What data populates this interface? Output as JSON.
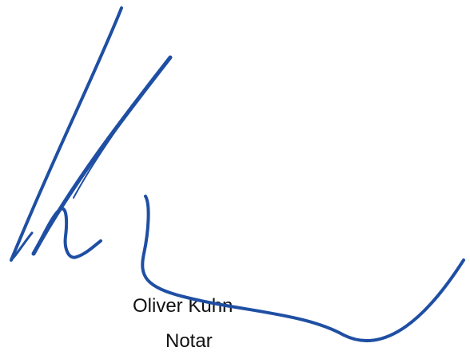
{
  "signatory": {
    "name": "Oliver Kuhn",
    "title": "Notar"
  },
  "signature": {
    "ink_color": "#1f4fa3"
  }
}
